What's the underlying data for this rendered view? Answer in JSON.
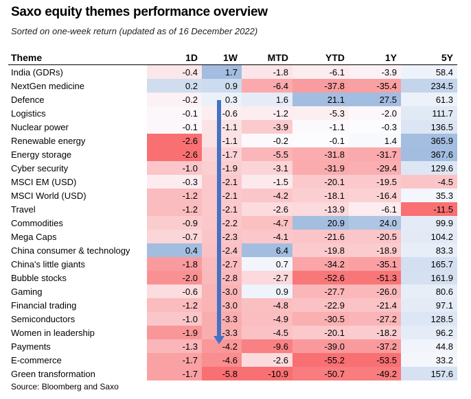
{
  "title": "Saxo equity themes performance overview",
  "subtitle": "Sorted on one-week return (updated as of 16 December 2022)",
  "source": "Source: Bloomberg and Saxo",
  "colors": {
    "negative": "#f8696b",
    "positive": "#5a8ac6",
    "neutral": "#fcfcff",
    "arrow": "#4472c4"
  },
  "chart_data": {
    "type": "table",
    "title": "Saxo equity themes performance overview",
    "subtitle": "Sorted on one-week return (updated as of 16 December 2022)",
    "columns": [
      "Theme",
      "1D",
      "1W",
      "MTD",
      "YTD",
      "1Y",
      "5Y"
    ],
    "rows": [
      {
        "theme": "India (GDRs)",
        "values": [
          "-0.4",
          "1.7",
          "-1.8",
          "-6.1",
          "-3.9",
          "58.4"
        ]
      },
      {
        "theme": "NextGen medicine",
        "values": [
          "0.2",
          "0.9",
          "-6.4",
          "-37.8",
          "-35.4",
          "234.5"
        ]
      },
      {
        "theme": "Defence",
        "values": [
          "-0.2",
          "0.3",
          "1.6",
          "21.1",
          "27.5",
          "61.3"
        ]
      },
      {
        "theme": "Logistics",
        "values": [
          "-0.1",
          "-0.6",
          "-1.2",
          "-5.3",
          "-2.0",
          "111.7"
        ]
      },
      {
        "theme": "Nuclear power",
        "values": [
          "-0.1",
          "-1.1",
          "-3.9",
          "-1.1",
          "-0.3",
          "136.5"
        ]
      },
      {
        "theme": "Renewable energy",
        "values": [
          "-2.6",
          "-1.1",
          "-0.2",
          "-0.1",
          "1.4",
          "365.9"
        ]
      },
      {
        "theme": "Energy storage",
        "values": [
          "-2.6",
          "-1.7",
          "-5.5",
          "-31.8",
          "-31.7",
          "367.6"
        ]
      },
      {
        "theme": "Cyber security",
        "values": [
          "-1.0",
          "-1.9",
          "-3.1",
          "-31.9",
          "-29.4",
          "129.6"
        ]
      },
      {
        "theme": "MSCI EM (USD)",
        "values": [
          "-0.3",
          "-2.1",
          "-1.5",
          "-20.1",
          "-19.5",
          "-4.5"
        ]
      },
      {
        "theme": "MSCI World (USD)",
        "values": [
          "-1.2",
          "-2.1",
          "-4.2",
          "-18.1",
          "-16.4",
          "35.3"
        ]
      },
      {
        "theme": "Travel",
        "values": [
          "-1.2",
          "-2.1",
          "-2.6",
          "-13.9",
          "-6.1",
          "-11.5"
        ]
      },
      {
        "theme": "Commodities",
        "values": [
          "-0.9",
          "-2.2",
          "-4.7",
          "20.9",
          "24.0",
          "99.9"
        ]
      },
      {
        "theme": "Mega Caps",
        "values": [
          "-0.7",
          "-2.3",
          "-4.1",
          "-21.6",
          "-20.5",
          "104.2"
        ]
      },
      {
        "theme": "China consumer & technology",
        "values": [
          "0.4",
          "-2.4",
          "6.4",
          "-19.8",
          "-18.9",
          "83.3"
        ]
      },
      {
        "theme": "China's little giants",
        "values": [
          "-1.8",
          "-2.7",
          "0.7",
          "-34.2",
          "-35.1",
          "165.7"
        ]
      },
      {
        "theme": "Bubble stocks",
        "values": [
          "-2.0",
          "-2.8",
          "-2.7",
          "-52.6",
          "-51.3",
          "161.9"
        ]
      },
      {
        "theme": "Gaming",
        "values": [
          "-0.6",
          "-3.0",
          "0.9",
          "-27.7",
          "-26.0",
          "80.6"
        ]
      },
      {
        "theme": "Financial trading",
        "values": [
          "-1.2",
          "-3.0",
          "-4.8",
          "-22.9",
          "-21.4",
          "97.1"
        ]
      },
      {
        "theme": "Semiconductors",
        "values": [
          "-1.0",
          "-3.3",
          "-4.9",
          "-30.5",
          "-27.2",
          "128.5"
        ]
      },
      {
        "theme": "Women in leadership",
        "values": [
          "-1.9",
          "-3.3",
          "-4.5",
          "-20.1",
          "-18.2",
          "96.2"
        ]
      },
      {
        "theme": "Payments",
        "values": [
          "-1.3",
          "-4.2",
          "-9.6",
          "-39.0",
          "-37.2",
          "44.8"
        ]
      },
      {
        "theme": "E-commerce",
        "values": [
          "-1.7",
          "-4.6",
          "-2.6",
          "-55.2",
          "-53.5",
          "33.2"
        ]
      },
      {
        "theme": "Green transformation",
        "values": [
          "-1.7",
          "-5.8",
          "-10.9",
          "-50.7",
          "-49.2",
          "157.6"
        ]
      }
    ]
  }
}
